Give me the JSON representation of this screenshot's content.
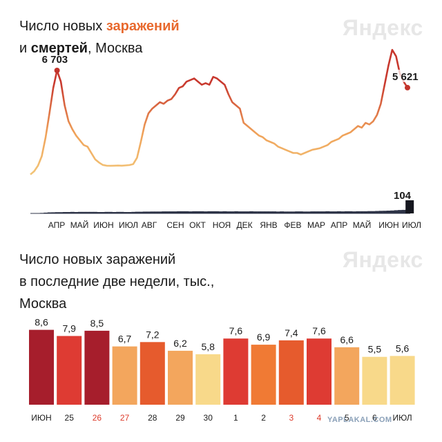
{
  "logo": "Яндекс",
  "watermark": "YAPLAKAL.COM",
  "chart1": {
    "title_lines": [
      [
        {
          "text": "Число новых ",
          "style": "plain"
        },
        {
          "text": "заражений",
          "style": "highlight"
        }
      ],
      [
        {
          "text": "и ",
          "style": "plain"
        },
        {
          "text": "смертей",
          "style": "bold"
        },
        {
          "text": ", Москва",
          "style": "plain"
        }
      ]
    ]
  },
  "chart2": {
    "title_lines": [
      [
        {
          "text": "Число новых заражений",
          "style": "plain"
        }
      ],
      [
        {
          "text": "в последние две недели, тыс.,",
          "style": "plain"
        }
      ],
      [
        {
          "text": "Москва",
          "style": "plain"
        }
      ]
    ]
  },
  "colors": {
    "line_low": "#f2c679",
    "line_mid": "#f0a35a",
    "line_high": "#c8382e",
    "deaths": "#2d3347",
    "deaths_last": "#15171f",
    "marker": "#c2332b",
    "bar_dark": "#a61e2c",
    "bar_red": "#de3b33",
    "bar_redorange": "#e65b2d",
    "bar_orange": "#f07a34",
    "bar_lightorange": "#f3a65d",
    "bar_yellow": "#f8d98a",
    "label_red": "#dd3a2a"
  },
  "chart_data": [
    {
      "type": "line",
      "title": "Число новых заражений и смертей, Москва",
      "x_tick_labels": [
        "АПР",
        "МАЙ",
        "ИЮН",
        "ИЮЛ",
        "АВГ",
        "СЕН",
        "ОКТ",
        "НОЯ",
        "ДЕК",
        "ЯНВ",
        "ФЕВ",
        "МАР",
        "АПР",
        "МАЙ",
        "ИЮН",
        "ИЮЛ"
      ],
      "series": [
        {
          "values": [
            150,
            350,
            700,
            1300,
            2500,
            4000,
            5600,
            6703,
            6000,
            4500,
            3500,
            3000,
            2600,
            2300,
            2000,
            1900,
            1500,
            1100,
            900,
            750,
            700,
            690,
            700,
            710,
            700,
            720,
            740,
            800,
            1200,
            2200,
            3300,
            4000,
            4300,
            4500,
            4700,
            4600,
            4800,
            4900,
            5200,
            5600,
            5700,
            6000,
            6100,
            6200,
            6000,
            5800,
            5900,
            5800,
            6300,
            6200,
            6000,
            5800,
            5200,
            4700,
            4500,
            4300,
            3400,
            3200,
            3000,
            2800,
            2600,
            2500,
            2300,
            2200,
            2100,
            1900,
            1800,
            1700,
            1600,
            1500,
            1500,
            1400,
            1500,
            1600,
            1700,
            1750,
            1800,
            1900,
            2000,
            2200,
            2300,
            2400,
            2600,
            2700,
            2800,
            3000,
            3200,
            3100,
            3400,
            3300,
            3500,
            3900,
            4600,
            5800,
            7000,
            8000,
            7600,
            6500,
            6000,
            5621
          ],
          "annotations": [
            {
              "index": 7,
              "label": "6 703"
            },
            {
              "index": 99,
              "label": "5 621"
            }
          ]
        },
        {
          "name": "смертей",
          "values": [
            0,
            0,
            2,
            4,
            6,
            8,
            9,
            10,
            10,
            11,
            11,
            12,
            11,
            12,
            12,
            12,
            12,
            12,
            11,
            11,
            12,
            12,
            11,
            12,
            12,
            11,
            11,
            12,
            13,
            13,
            14,
            14,
            15,
            15,
            15,
            16,
            16,
            16,
            16,
            17,
            17,
            17,
            16,
            17,
            17,
            17,
            16,
            17,
            17,
            17,
            16,
            17,
            16,
            16,
            17,
            16,
            16,
            16,
            17,
            16,
            16,
            16,
            16,
            16,
            16,
            15,
            16,
            15,
            15,
            15,
            16,
            16,
            15,
            15,
            16,
            16,
            16,
            16,
            17,
            16,
            16,
            17,
            16,
            17,
            17,
            16,
            17,
            17,
            17,
            18,
            18,
            19,
            20,
            21,
            22,
            23,
            25,
            27,
            28,
            104
          ],
          "annotations": [
            {
              "index": 99,
              "label": "104"
            }
          ]
        }
      ]
    },
    {
      "type": "bar",
      "title": "Число новых заражений в последние две недели, тыс., Москва",
      "categories": [
        "ИЮН",
        "25",
        "26",
        "27",
        "28",
        "29",
        "30",
        "1",
        "2",
        "3",
        "4",
        "5",
        "6",
        "ИЮЛ"
      ],
      "values": [
        8.6,
        7.9,
        8.5,
        6.7,
        7.2,
        6.2,
        5.8,
        7.6,
        6.9,
        7.4,
        7.6,
        6.6,
        5.5,
        5.6
      ],
      "value_labels": [
        "8,6",
        "7,9",
        "8,5",
        "6,7",
        "7,2",
        "6,2",
        "5,8",
        "7,6",
        "6,9",
        "7,4",
        "7,6",
        "6,6",
        "5,5",
        "5,6"
      ],
      "highlighted_categories": [
        "26",
        "27",
        "3",
        "4"
      ]
    }
  ]
}
